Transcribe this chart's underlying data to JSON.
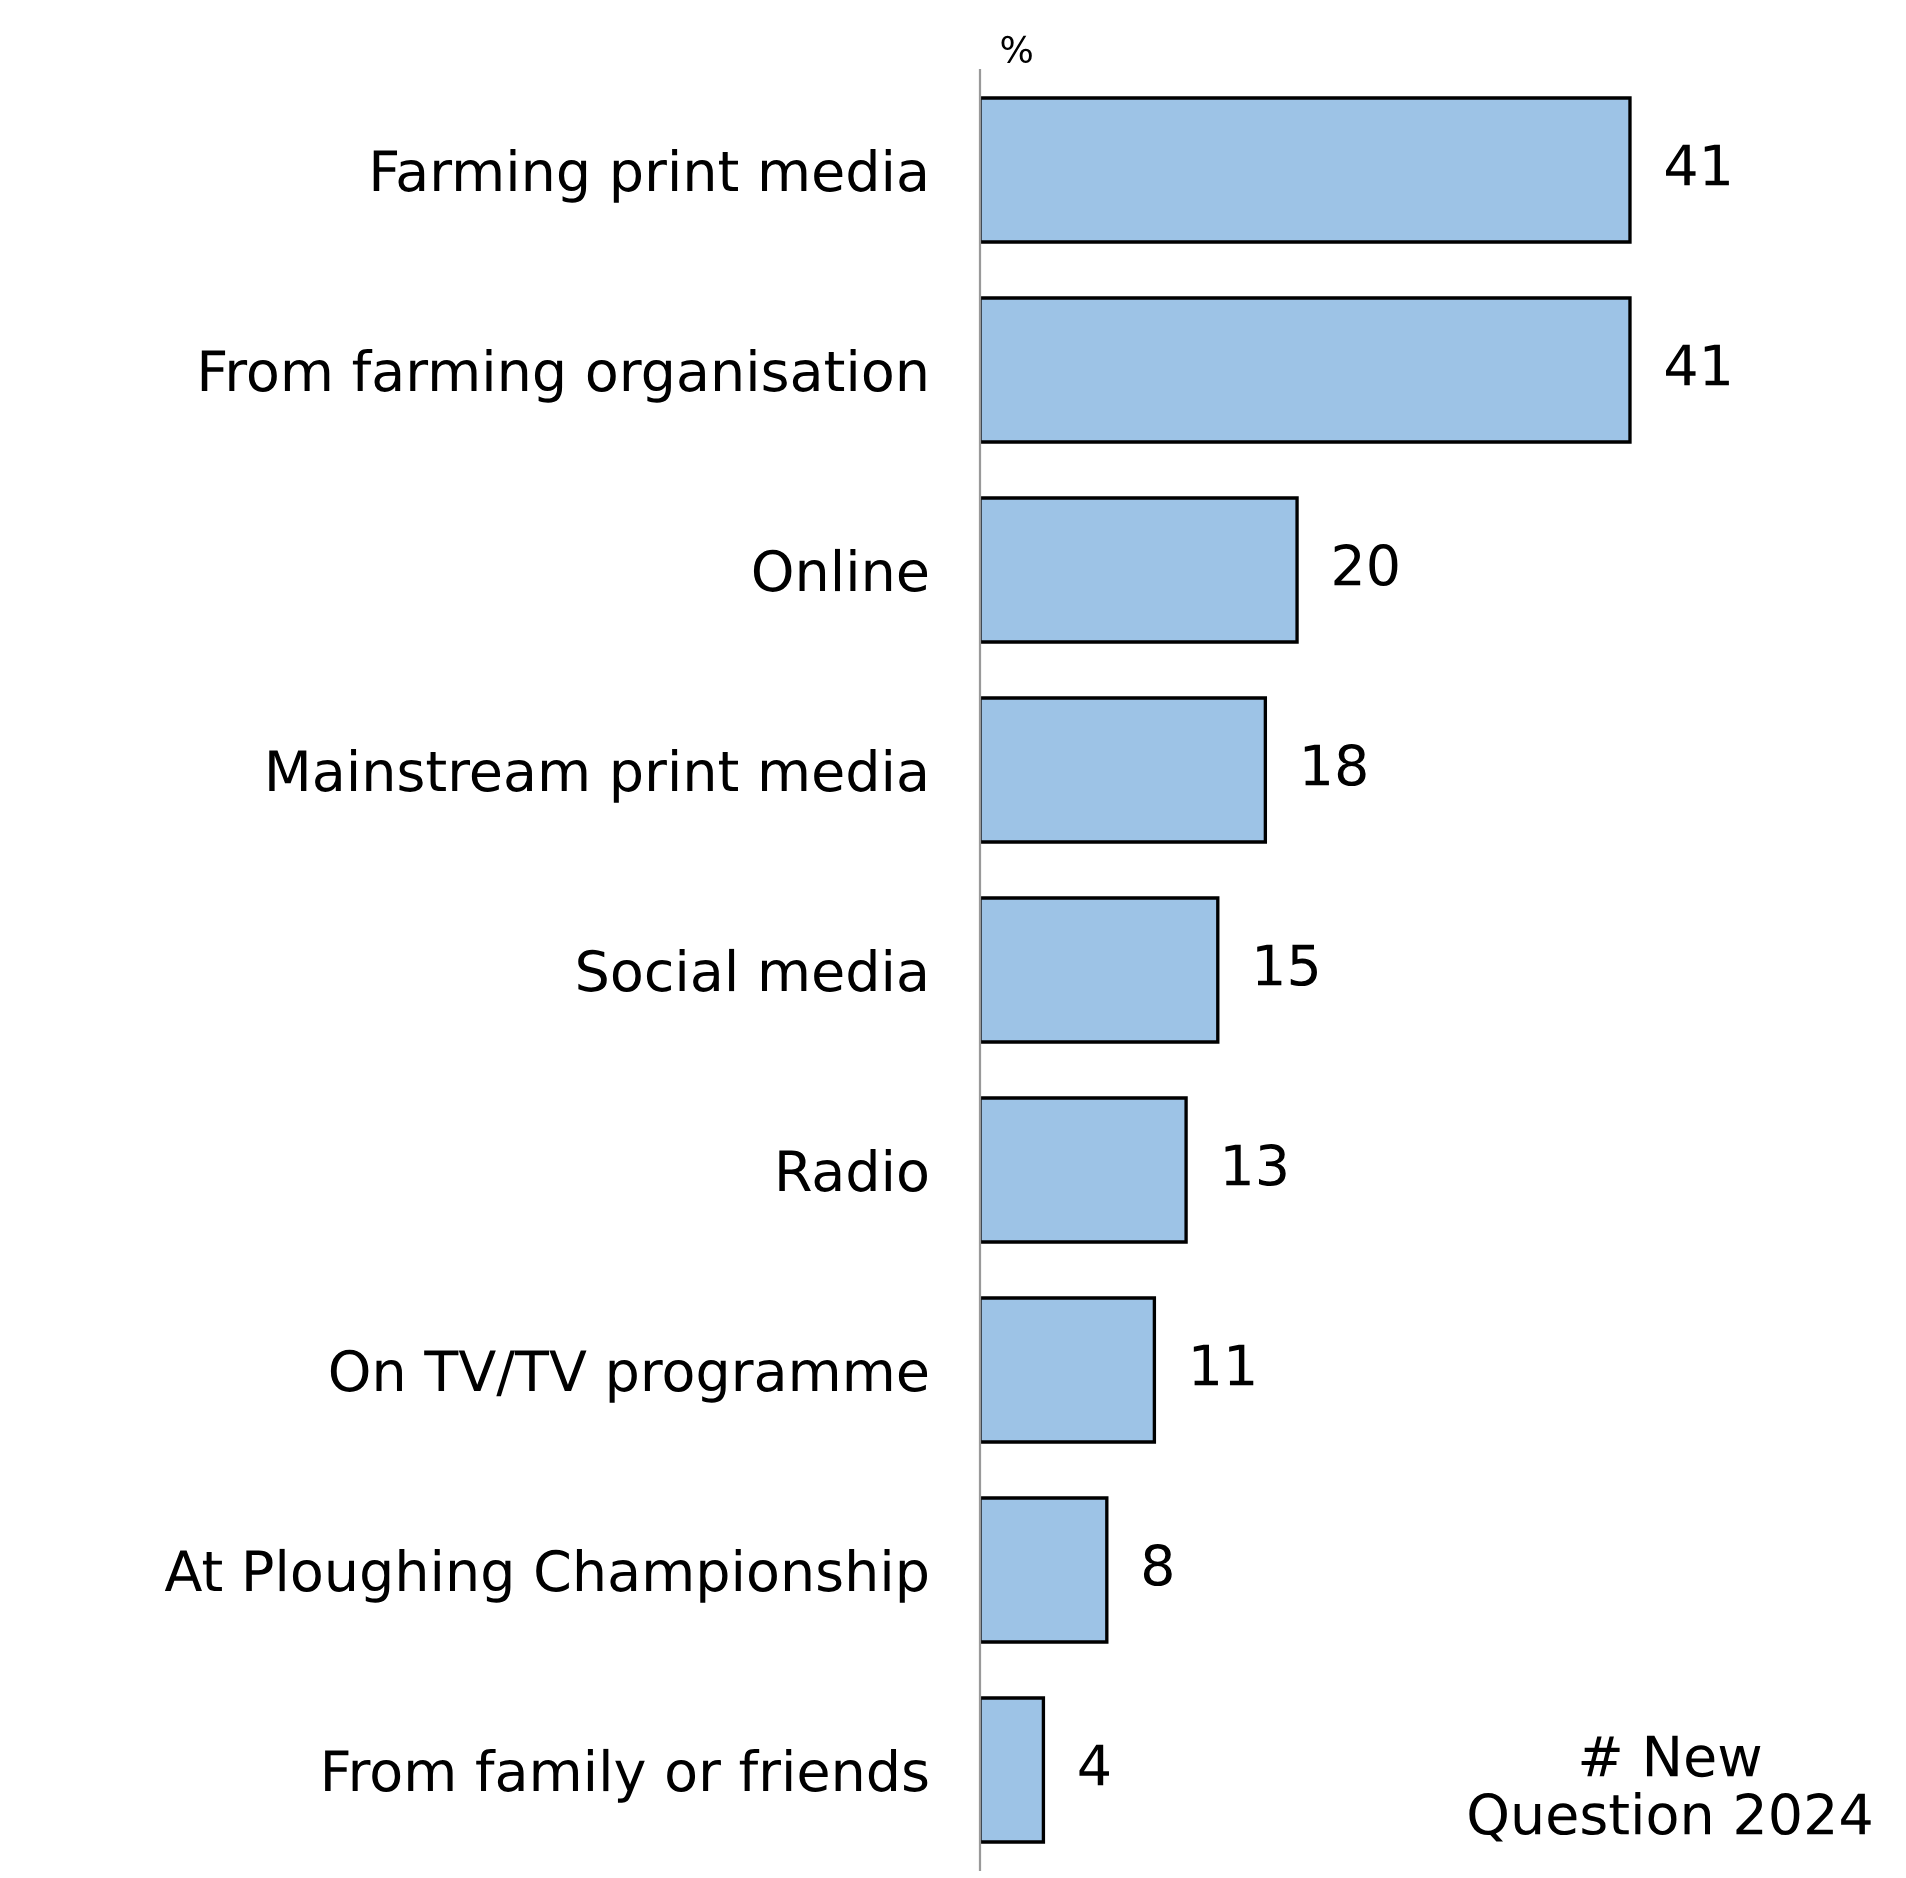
{
  "chart_data": {
    "type": "bar",
    "orientation": "horizontal",
    "xlabel": "%",
    "categories": [
      "Farming print media",
      "From farming organisation",
      "Online",
      "Mainstream print media",
      "Social media",
      "Radio",
      "On TV/TV programme",
      "At Ploughing Championship",
      "From family or friends"
    ],
    "values": [
      41,
      41,
      20,
      18,
      15,
      13,
      11,
      8,
      4
    ],
    "color": "#9dc3e6",
    "data_labels": true,
    "grid": false,
    "legend": false,
    "annotations": [
      "# New\nQuestion 2024"
    ]
  }
}
